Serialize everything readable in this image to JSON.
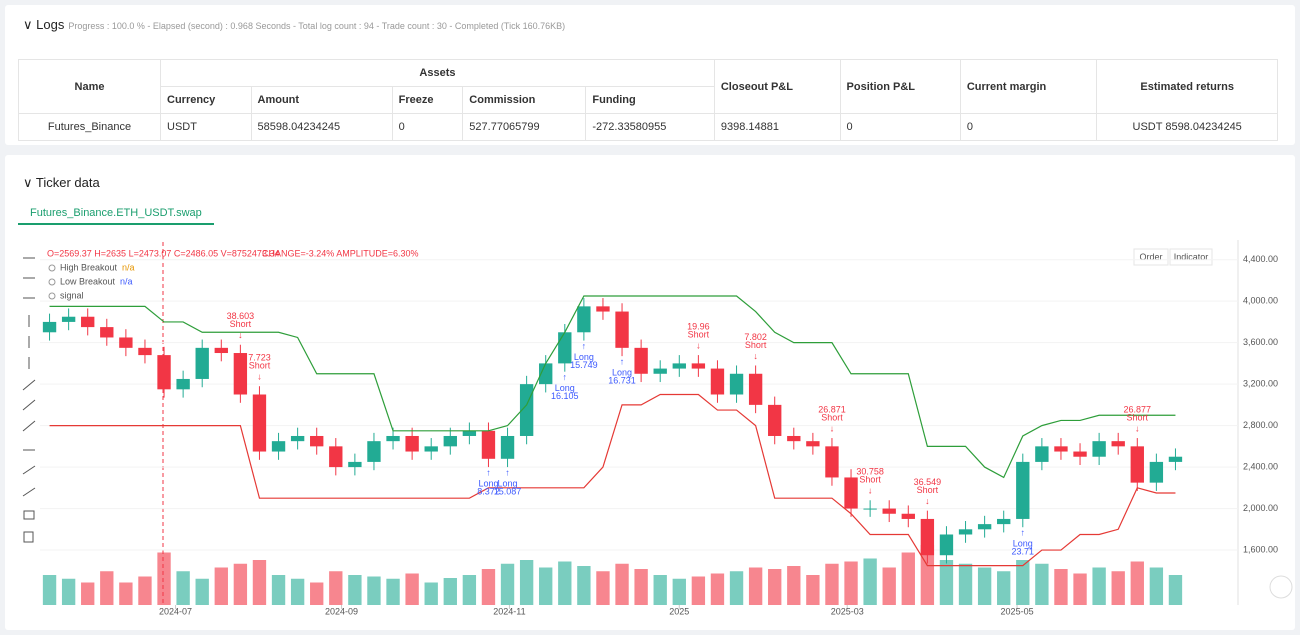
{
  "logs": {
    "title": "Logs",
    "progress": "Progress : 100.0 % - Elapsed (second) : 0.968 Seconds - Total log count : 94 - Trade count : 30 - Completed (Tick 160.76KB)",
    "table": {
      "name_header": "Name",
      "group_header": "Assets",
      "sub_headers": [
        "Currency",
        "Amount",
        "Freeze",
        "Commission",
        "Funding"
      ],
      "right_headers": [
        "Closeout P&L",
        "Position P&L",
        "Current margin",
        "Estimated returns"
      ],
      "rows": [
        [
          "Futures_Binance",
          "USDT",
          "58598.04234245",
          "0",
          "527.77065799",
          "-272.33580955",
          "9398.14881",
          "0",
          "0",
          "USDT 8598.04234245"
        ]
      ]
    }
  },
  "ticker": {
    "title": "Ticker data",
    "tab": "Futures_Binance.ETH_USDT.swap",
    "buttons": [
      "Order",
      "Indicator"
    ]
  },
  "chart_data": {
    "type": "candlestick",
    "ohlc_info": "O=2569.37 H=2635 L=2473.07 C=2486.05 V=8752473.34",
    "change_info": "CHANGE=-3.24% AMPLITUDE=6.30%",
    "ylim": [
      1070,
      4590
    ],
    "yticks": [
      {
        "value": 4400,
        "label": "4,400.00"
      },
      {
        "value": 4000,
        "label": "4,000.00"
      },
      {
        "value": 3600,
        "label": "3,600.00"
      },
      {
        "value": 3200,
        "label": "3,200.00"
      },
      {
        "value": 2800,
        "label": "2,800.00"
      },
      {
        "value": 2400,
        "label": "2,400.00"
      },
      {
        "value": 2000,
        "label": "2,000.00"
      },
      {
        "value": 1600,
        "label": "1,600.00"
      }
    ],
    "xlim": [
      -0.5,
      59.5
    ],
    "xticks": [
      {
        "value": 6.6,
        "label": "2024-07"
      },
      {
        "value": 15.3,
        "label": "2024-09"
      },
      {
        "value": 24.1,
        "label": "2024-11"
      },
      {
        "value": 33,
        "label": "2025"
      },
      {
        "value": 41.8,
        "label": "2025-03"
      },
      {
        "value": 50.7,
        "label": "2025-05"
      }
    ],
    "up_color": "#22ab94",
    "down_color": "#f23645",
    "open": [
      3700,
      3800,
      3850,
      3750,
      3650,
      3550,
      3480,
      3150,
      3250,
      3550,
      3500,
      3100,
      2550,
      2650,
      2700,
      2600,
      2400,
      2450,
      2650,
      2700,
      2550,
      2600,
      2700,
      2750,
      2480,
      2700,
      3200,
      3400,
      3700,
      3950,
      3900,
      3550,
      3300,
      3350,
      3400,
      3350,
      3100,
      3300,
      3000,
      2700,
      2650,
      2600,
      2300,
      2000,
      2000,
      1950,
      1900,
      1550,
      1750,
      1800,
      1850,
      1900,
      2450,
      2600,
      2550,
      2500,
      2650,
      2600,
      2250,
      2450
    ],
    "high": [
      3880,
      3930,
      3930,
      3830,
      3730,
      3630,
      3560,
      3330,
      3630,
      3630,
      3580,
      3180,
      2730,
      2780,
      2780,
      2680,
      2530,
      2730,
      2780,
      2780,
      2680,
      2780,
      2830,
      2830,
      2780,
      3280,
      3480,
      3780,
      4030,
      4030,
      3980,
      3630,
      3430,
      3480,
      3480,
      3430,
      3380,
      3380,
      3080,
      2780,
      2730,
      2680,
      2380,
      2080,
      2080,
      2030,
      1980,
      1830,
      1880,
      1930,
      1980,
      2530,
      2680,
      2680,
      2630,
      2730,
      2730,
      2680,
      2530,
      2580
    ],
    "low": [
      3620,
      3720,
      3670,
      3570,
      3470,
      3400,
      3070,
      3070,
      3170,
      3420,
      3020,
      2470,
      2470,
      2570,
      2520,
      2320,
      2320,
      2370,
      2570,
      2470,
      2470,
      2520,
      2620,
      2400,
      2400,
      2620,
      3120,
      3320,
      3620,
      3820,
      3470,
      3220,
      3220,
      3270,
      3270,
      3020,
      3020,
      2920,
      2620,
      2570,
      2520,
      2220,
      1920,
      1920,
      1870,
      1820,
      1470,
      1470,
      1670,
      1720,
      1770,
      1820,
      2370,
      2470,
      2420,
      2420,
      2520,
      2170,
      2170,
      2370
    ],
    "close": [
      3800,
      3850,
      3750,
      3650,
      3550,
      3480,
      3150,
      3250,
      3550,
      3500,
      3100,
      2550,
      2650,
      2700,
      2600,
      2400,
      2450,
      2650,
      2700,
      2550,
      2600,
      2700,
      2750,
      2480,
      2700,
      3200,
      3400,
      3700,
      3950,
      3900,
      3550,
      3300,
      3350,
      3400,
      3350,
      3100,
      3300,
      3000,
      2700,
      2650,
      2600,
      2300,
      2000,
      2000,
      1950,
      1900,
      1550,
      1750,
      1800,
      1850,
      1900,
      2450,
      2600,
      2550,
      2500,
      2650,
      2600,
      2250,
      2450,
      2500
    ],
    "volume": [
      40,
      35,
      30,
      45,
      30,
      38,
      70,
      45,
      35,
      50,
      55,
      60,
      40,
      35,
      30,
      45,
      40,
      38,
      35,
      42,
      30,
      36,
      40,
      48,
      55,
      60,
      50,
      58,
      52,
      45,
      55,
      48,
      40,
      35,
      38,
      42,
      45,
      50,
      48,
      52,
      40,
      55,
      58,
      62,
      50,
      70,
      80,
      60,
      55,
      50,
      45,
      60,
      55,
      48,
      42,
      50,
      45,
      58,
      50,
      40
    ],
    "series": [
      {
        "name": "High Breakout",
        "status": "n/a",
        "color": "#2e9e3a",
        "values": [
          3950,
          3950,
          3950,
          3950,
          3950,
          3950,
          3800,
          3800,
          3700,
          3700,
          3700,
          3700,
          3700,
          3650,
          3300,
          3300,
          3300,
          3300,
          2750,
          2750,
          2750,
          2750,
          2750,
          2750,
          2800,
          3000,
          3400,
          3700,
          4050,
          4050,
          4050,
          4050,
          4050,
          4050,
          4050,
          4050,
          4050,
          3900,
          3700,
          3600,
          3600,
          3600,
          3300,
          3300,
          3300,
          3300,
          2600,
          2600,
          2600,
          2400,
          2300,
          2700,
          2800,
          2850,
          2850,
          2900,
          2900,
          2900,
          2900,
          2900
        ]
      },
      {
        "name": "Low Breakout",
        "status": "n/a",
        "color": "#e53935",
        "values": [
          2800,
          2800,
          2800,
          2800,
          2800,
          2800,
          2800,
          2800,
          2800,
          2800,
          2800,
          2100,
          2100,
          2100,
          2100,
          2100,
          2100,
          2100,
          2100,
          2100,
          2100,
          2100,
          2100,
          2200,
          2200,
          2200,
          2200,
          2200,
          2200,
          2400,
          3000,
          3000,
          3100,
          3100,
          3100,
          2950,
          2950,
          2800,
          2100,
          2100,
          2100,
          2100,
          1950,
          1750,
          1750,
          1750,
          1450,
          1450,
          1450,
          1450,
          1450,
          1450,
          1600,
          1600,
          1750,
          1750,
          1800,
          2200,
          2150,
          2150
        ]
      }
    ],
    "signal_name": "signal",
    "signals": [
      {
        "index": 10,
        "label": "Short",
        "amount": "38.603"
      },
      {
        "index": 11,
        "label": "Short",
        "amount": "7.723"
      },
      {
        "index": 23,
        "label": "Long",
        "amount": "8.372"
      },
      {
        "index": 24,
        "label": "Long",
        "amount": "15.087"
      },
      {
        "index": 27,
        "label": "Long",
        "amount": "16.105"
      },
      {
        "index": 28,
        "label": "Long",
        "amount": "15.749"
      },
      {
        "index": 30,
        "label": "Long",
        "amount": "16.731"
      },
      {
        "index": 34,
        "label": "Short",
        "amount": "19.96"
      },
      {
        "index": 37,
        "label": "Short",
        "amount": "7.802"
      },
      {
        "index": 41,
        "label": "Short",
        "amount": "26.871"
      },
      {
        "index": 43,
        "label": "Short",
        "amount": "30.758"
      },
      {
        "index": 46,
        "label": "Short",
        "amount": "36.549"
      },
      {
        "index": 51,
        "label": "Long",
        "amount": "23.71"
      },
      {
        "index": 57,
        "label": "Short",
        "amount": "26.877"
      }
    ]
  }
}
